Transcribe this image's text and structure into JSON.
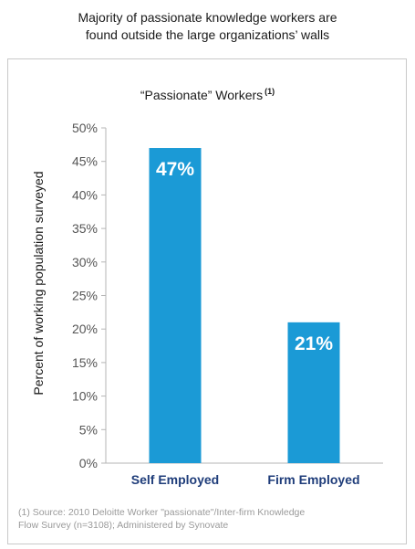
{
  "headline": {
    "line1": "Majority of passionate knowledge workers are",
    "line2": "found outside the large organizations’ walls"
  },
  "chart_data": {
    "type": "bar",
    "title": "“Passionate” Workers",
    "title_footnote_marker": "(1)",
    "categories": [
      "Self Employed",
      "Firm Employed"
    ],
    "values": [
      47,
      21
    ],
    "value_labels": [
      "47%",
      "21%"
    ],
    "ylabel": "Percent of working population surveyed",
    "xlabel": "",
    "ylim": [
      0,
      50
    ],
    "yticks": [
      0,
      5,
      10,
      15,
      20,
      25,
      30,
      35,
      40,
      45,
      50
    ],
    "ytick_labels": [
      "0%",
      "5%",
      "10%",
      "15%",
      "20%",
      "25%",
      "30%",
      "35%",
      "40%",
      "45%",
      "50%"
    ],
    "grid": false,
    "legend": "none",
    "bar_color": "#1b9ad6",
    "category_label_color": "#1f3d7a"
  },
  "footnote": {
    "line1": "(1) Source: 2010 Deloitte Worker \"passionate\"/Inter-firm Knowledge",
    "line2": "Flow Survey (n=3108); Administered by Synovate"
  }
}
